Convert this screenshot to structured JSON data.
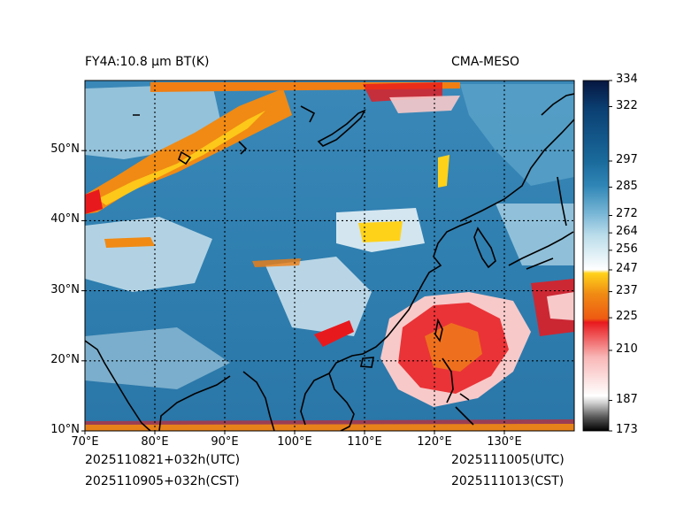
{
  "header": {
    "product_title": "FY4A:10.8 µm BT(K)",
    "model_name": "CMA-MESO"
  },
  "footer": {
    "init_utc": "2025110821+032h(UTC)",
    "init_cst": "2025110905+032h(CST)",
    "valid_utc": "2025111005(UTC)",
    "valid_cst": "2025111013(CST)"
  },
  "map": {
    "lon_range": [
      70,
      140
    ],
    "lat_range": [
      10,
      60
    ],
    "lon_ticks": [
      70,
      80,
      90,
      100,
      110,
      120,
      130
    ],
    "lon_labels": [
      "70°E",
      "80°E",
      "90°E",
      "100°E",
      "110°E",
      "120°E",
      "130°E"
    ],
    "lat_ticks": [
      10,
      20,
      30,
      40,
      50
    ],
    "lat_labels": [
      "10°N",
      "20°N",
      "30°N",
      "40°N",
      "50°N"
    ],
    "gridlines": "dotted"
  },
  "colorbar": {
    "min": 173,
    "max": 334,
    "ticks": [
      173,
      187,
      210,
      225,
      237,
      247,
      256,
      264,
      272,
      285,
      297,
      322,
      334
    ],
    "tick_labels": [
      "173",
      "187",
      "210",
      "225",
      "237",
      "247",
      "256",
      "264",
      "272",
      "285",
      "297",
      "322",
      "334"
    ]
  },
  "palette": {
    "very_cold": "#000000",
    "cold_gray": "#bdbdbd",
    "pink": "#f7c9c9",
    "red": "#e8191d",
    "orange": "#f07e12",
    "yellow": "#ffd21a",
    "white": "#ffffff",
    "light_blue": "#a6cfe3",
    "mid_blue": "#2f86b6",
    "dark_blue": "#0f4f7e",
    "navy": "#081a45",
    "coast": "#000000"
  }
}
